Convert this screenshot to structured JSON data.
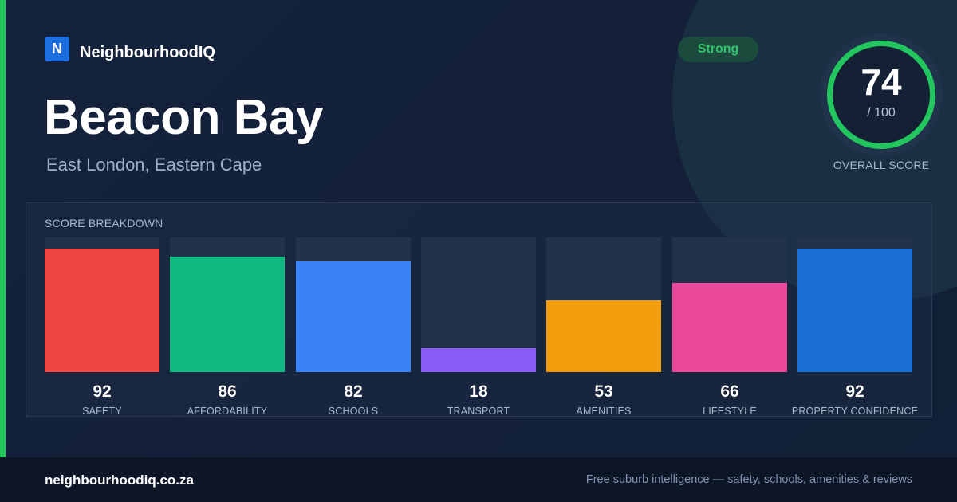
{
  "brand": {
    "logo_letter": "N",
    "name": "NeighbourhoodIQ"
  },
  "suburb": {
    "name": "Beacon Bay",
    "location": "East London, Eastern Cape"
  },
  "rating": {
    "label": "Strong"
  },
  "overall": {
    "value": "74",
    "max": "/ 100",
    "caption": "OVERALL SCORE"
  },
  "breakdown": {
    "title": "SCORE BREAKDOWN",
    "categories": [
      {
        "label": "SAFETY",
        "value": 92,
        "value_text": "92",
        "color": "#ef4444"
      },
      {
        "label": "AFFORDABILITY",
        "value": 86,
        "value_text": "86",
        "color": "#10b981"
      },
      {
        "label": "SCHOOLS",
        "value": 82,
        "value_text": "82",
        "color": "#3b82f6"
      },
      {
        "label": "TRANSPORT",
        "value": 18,
        "value_text": "18",
        "color": "#8b5cf6"
      },
      {
        "label": "AMENITIES",
        "value": 53,
        "value_text": "53",
        "color": "#f59e0b"
      },
      {
        "label": "LIFESTYLE",
        "value": 66,
        "value_text": "66",
        "color": "#ec4899"
      },
      {
        "label": "PROPERTY CONFIDENCE",
        "value": 92,
        "value_text": "92",
        "color": "#1d6fd8"
      }
    ]
  },
  "colors": {
    "accent": "#22c55e",
    "brand": "#1d6fe0",
    "background": "#132038"
  },
  "footer": {
    "domain": "neighbourhoodiq.co.za",
    "tagline": "Free suburb intelligence — safety, schools, amenities & reviews"
  }
}
